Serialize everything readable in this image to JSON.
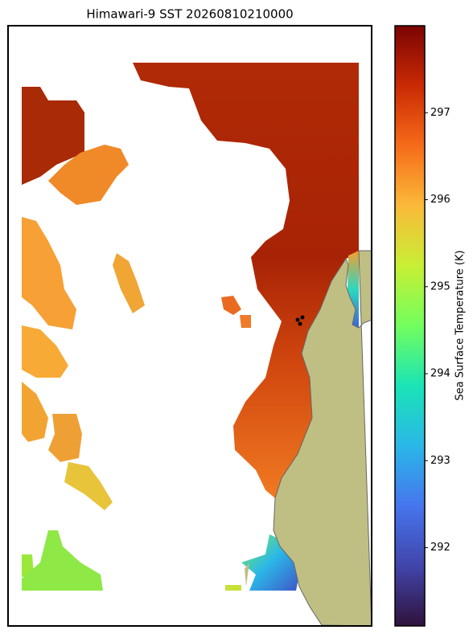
{
  "title": "Himawari-9 SST 20260810210000",
  "colorbar": {
    "label": "Sea Surface Temperature (K)",
    "range": [
      291.1,
      298.0
    ],
    "ticks": [
      292,
      293,
      294,
      295,
      296,
      297
    ]
  }
}
